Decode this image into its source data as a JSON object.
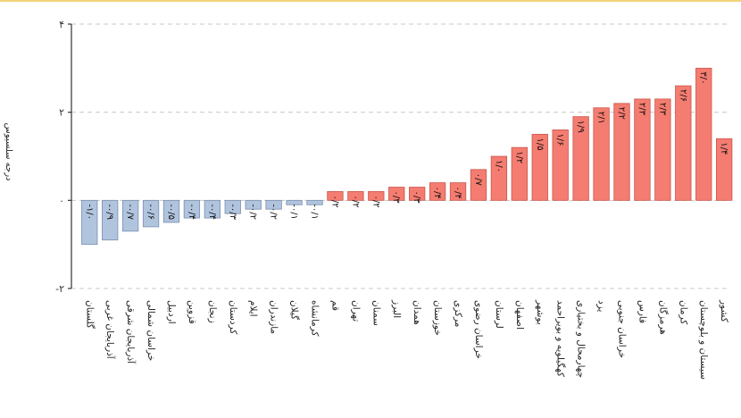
{
  "chart_data": {
    "type": "bar",
    "ylabel": "درجه سلسیوس",
    "ylim": [
      -2,
      4
    ],
    "yticks": [
      -2,
      0,
      2,
      4
    ],
    "ytick_labels": [
      "-۲",
      "۰",
      "۲",
      "۴"
    ],
    "grid": true,
    "categories": [
      "گلستان",
      "آذربایجان غربی",
      "آذربایجان شرقی",
      "خراسان شمالی",
      "اردبیل",
      "قزوین",
      "زنجان",
      "کردستان",
      "ایلام",
      "مازندران",
      "گیلان",
      "کرمانشاه",
      "قم",
      "تهران",
      "سمنان",
      "البرز",
      "همدان",
      "خوزستان",
      "مرکزی",
      "خراسان رضوی",
      "لرستان",
      "اصفهان",
      "بوشهر",
      "کهگیلویه و بویراحمد",
      "چهارمحال و بختیاری",
      "یزد",
      "خراسان جنوبی",
      "فارس",
      "هرمزگان",
      "کرمان",
      "سیستان و بلوچستان",
      "کشور"
    ],
    "values": [
      -1.0,
      -0.9,
      -0.7,
      -0.6,
      -0.5,
      -0.4,
      -0.4,
      -0.3,
      -0.2,
      -0.2,
      -0.1,
      -0.1,
      0.2,
      0.2,
      0.2,
      0.3,
      0.3,
      0.4,
      0.4,
      0.7,
      1.0,
      1.2,
      1.5,
      1.6,
      1.9,
      2.1,
      2.2,
      2.3,
      2.3,
      2.6,
      3.0,
      1.4
    ],
    "value_labels": [
      "-۱/۰",
      "-۰/۹",
      "-۰/۷",
      "-۰/۶",
      "-۰/۵",
      "-۰/۴",
      "-۰/۴",
      "-۰/۳",
      "-۰/۲",
      "-۰/۲",
      "-۰/۱",
      "-۰/۱",
      "۰/۲",
      "۰/۲",
      "۰/۲",
      "۰/۳",
      "۰/۳",
      "۰/۴",
      "۰/۴",
      "۰/۷",
      "۱/۰",
      "۱/۲",
      "۱/۵",
      "۱/۶",
      "۱/۹",
      "۲/۱",
      "۲/۲",
      "۲/۳",
      "۲/۳",
      "۲/۶",
      "۳/۰",
      "۱/۴"
    ],
    "colors": {
      "negative_fill": "#b1c4de",
      "negative_stroke": "#7a8fae",
      "positive_fill": "#f47c70",
      "positive_stroke": "#c9564b",
      "grid": "#c8c8c8",
      "axis": "#333333"
    }
  }
}
